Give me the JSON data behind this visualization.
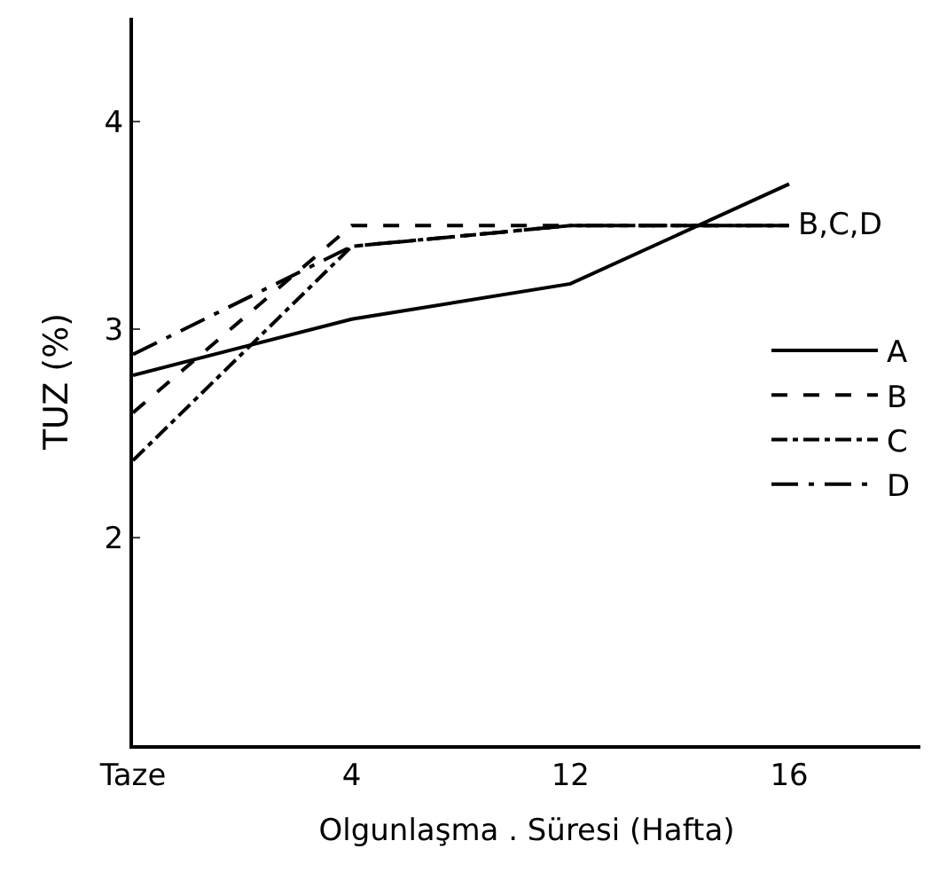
{
  "chart_data": {
    "type": "line",
    "xlabel": "Olgunlaşma . Süresi (Hafta)",
    "ylabel": "TUZ (%)",
    "categories": [
      "Taze",
      "4",
      "12",
      "16"
    ],
    "series": [
      {
        "name": "A",
        "color": "#000000",
        "line_style": "solid",
        "values": [
          2.78,
          3.05,
          3.22,
          3.7
        ]
      },
      {
        "name": "B",
        "color": "#000000",
        "line_style": "dashed",
        "values": [
          2.6,
          3.5,
          3.5,
          3.5
        ]
      },
      {
        "name": "C",
        "color": "#000000",
        "line_style": "dashdot",
        "values": [
          2.37,
          3.4,
          3.5,
          3.5
        ]
      },
      {
        "name": "D",
        "color": "#000000",
        "line_style": "longdashdot",
        "values": [
          2.88,
          3.4,
          3.5,
          3.5
        ]
      }
    ],
    "annotations": [
      {
        "text": "B,C,D",
        "x": "16",
        "y": 3.5
      }
    ],
    "ylim": [
      1,
      4.5
    ],
    "yticks": [
      2,
      3,
      4
    ],
    "legend": "right",
    "marker": "none"
  }
}
